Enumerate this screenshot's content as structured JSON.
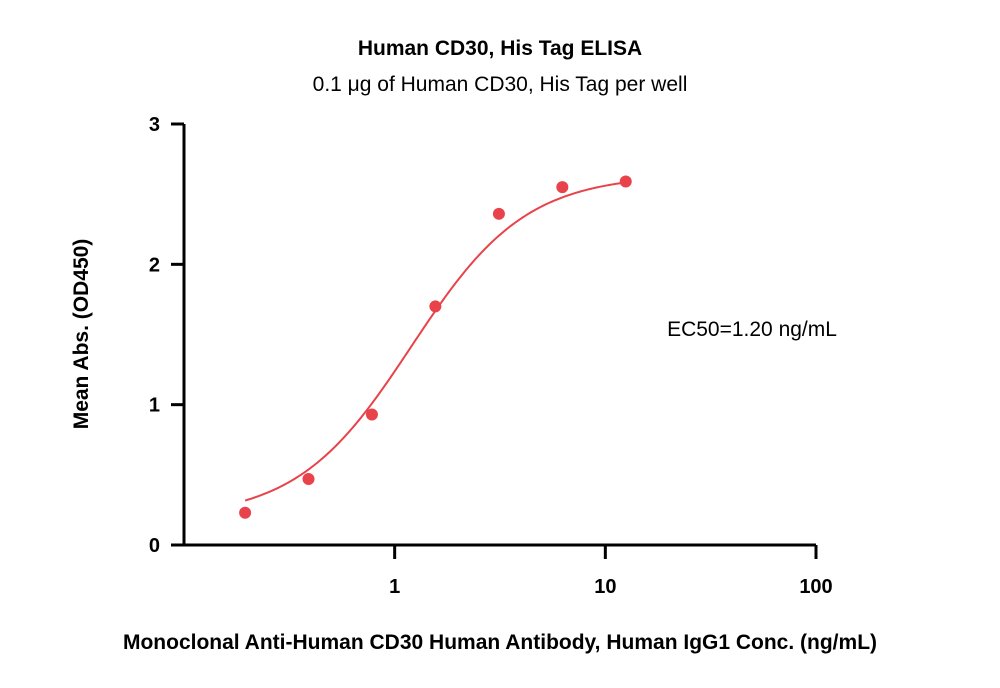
{
  "chart_data": {
    "type": "scatter",
    "title": "Human CD30, His Tag ELISA",
    "subtitle": "0.1 μg of Human CD30, His Tag per well",
    "xlabel": "Monoclonal Anti-Human CD30 Human Antibody, Human IgG1 Conc. (ng/mL)",
    "ylabel": "Mean Abs. (OD450)",
    "x_scale": "log",
    "xlim": [
      0.1,
      100
    ],
    "ylim": [
      0,
      3
    ],
    "x_ticks": [
      1,
      10,
      100
    ],
    "x_tick_labels": [
      "1",
      "10",
      "100"
    ],
    "y_ticks": [
      0,
      1,
      2,
      3
    ],
    "y_tick_labels": [
      "0",
      "1",
      "2",
      "3"
    ],
    "grid": false,
    "series": [
      {
        "x": [
          0.195,
          0.39,
          0.78,
          1.56,
          3.125,
          6.25,
          12.5
        ],
        "y": [
          0.23,
          0.47,
          0.93,
          1.7,
          2.36,
          2.55,
          2.59
        ],
        "color": "#e8434a",
        "fit": "4PL"
      }
    ],
    "annotation": "EC50=1.20 ng/mL"
  }
}
